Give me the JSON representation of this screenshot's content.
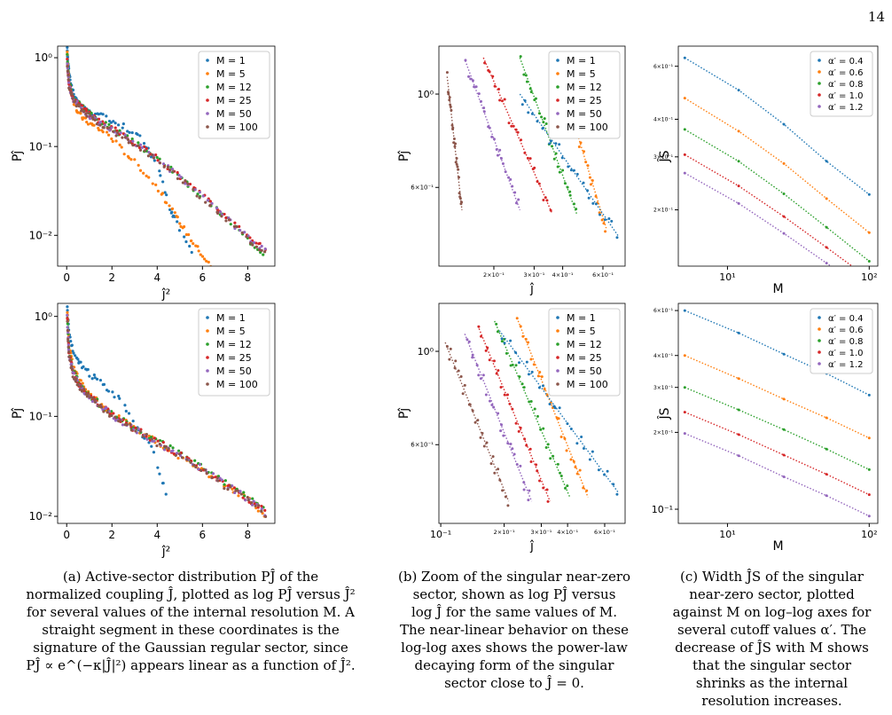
{
  "page_number": "14",
  "colors": {
    "M=1": "#1f77b4",
    "M=5": "#ff7f0e",
    "M=12": "#2ca02c",
    "M=25": "#d62728",
    "M=50": "#9467bd",
    "M=100": "#8c564b"
  },
  "captions": {
    "a": [
      "(a) Active-sector distribution PĴ of the",
      "normalized coupling Ĵ, plotted as log PĴ versus Ĵ²",
      "for several values of the internal resolution M. A",
      "straight segment in these coordinates is the",
      "signature of the Gaussian regular sector, since",
      "PĴ ∝ e^(−κ|Ĵ|²) appears linear as a function of Ĵ²."
    ],
    "b": [
      "(b) Zoom of the singular near-zero",
      "sector, shown as log PĴ versus",
      "log Ĵ for the same values of M.",
      "The near-linear behavior on these",
      "log-log axes shows the power-law",
      "decaying form of the singular",
      "sector close to Ĵ = 0."
    ],
    "c": [
      "(c) Width ĴS of the singular",
      "near-zero sector, plotted",
      "against M on log–log axes for",
      "several cutoff values α′. The",
      "decrease of ĴS with M shows",
      "that the singular sector",
      "shrinks as the internal",
      "resolution increases."
    ]
  },
  "chart_data": [
    {
      "id": "a-top",
      "type": "scatter",
      "xlabel": "ĵ²",
      "ylabel": "Pĵ",
      "xlim": [
        -0.4,
        9.2
      ],
      "ylim": [
        0.0045,
        1.35
      ],
      "yscale": "log",
      "xticks": [
        "0",
        "2",
        "4",
        "6",
        "8"
      ],
      "yticks": [
        "10⁰",
        "10⁻¹",
        "10⁻²"
      ],
      "legend": [
        "M = 1",
        "M = 5",
        "M = 12",
        "M = 25",
        "M = 50",
        "M = 100"
      ],
      "legend_position": "top-right",
      "series": [
        {
          "name": "M = 1",
          "kind": "regular",
          "x": [
            0.02,
            0.05,
            0.1,
            0.2,
            0.35,
            0.5,
            0.8,
            1.2,
            1.8,
            2.5,
            3.2,
            4.0,
            4.6,
            4.8,
            5.6
          ],
          "y": [
            1.3,
            0.9,
            0.7,
            0.5,
            0.36,
            0.3,
            0.26,
            0.23,
            0.21,
            0.17,
            0.13,
            0.065,
            0.018,
            0.015,
            0.006
          ]
        },
        {
          "name": "M = 5",
          "kind": "gauss",
          "x": [
            0.02,
            0.05,
            0.1,
            0.2,
            0.35,
            0.5,
            0.8,
            1.2,
            1.8,
            2.5,
            3.2,
            4.0,
            4.6,
            5.0,
            5.5,
            6.0,
            6.5
          ],
          "y": [
            1.2,
            0.8,
            0.55,
            0.4,
            0.3,
            0.24,
            0.2,
            0.17,
            0.14,
            0.09,
            0.06,
            0.035,
            0.02,
            0.014,
            0.009,
            0.006,
            0.004
          ]
        },
        {
          "name": "M = 12",
          "kind": "regular",
          "x": [
            0.02,
            0.1,
            0.3,
            0.6,
            1.0,
            1.5,
            2.2,
            3.0,
            4.0,
            5.0,
            6.0,
            7.0,
            8.0,
            8.8
          ],
          "y": [
            1.1,
            0.55,
            0.36,
            0.3,
            0.24,
            0.19,
            0.15,
            0.11,
            0.075,
            0.045,
            0.027,
            0.016,
            0.009,
            0.006
          ]
        },
        {
          "name": "M = 25",
          "kind": "regular",
          "x": [
            0.02,
            0.1,
            0.3,
            0.6,
            1.0,
            1.5,
            2.2,
            3.0,
            4.0,
            5.0,
            6.0,
            7.0,
            8.0,
            8.8
          ],
          "y": [
            1.0,
            0.5,
            0.34,
            0.29,
            0.23,
            0.19,
            0.15,
            0.11,
            0.075,
            0.046,
            0.028,
            0.017,
            0.01,
            0.007
          ]
        },
        {
          "name": "M = 50",
          "kind": "regular",
          "x": [
            0.02,
            0.1,
            0.3,
            0.6,
            1.0,
            1.5,
            2.2,
            3.0,
            4.0,
            5.0,
            6.0,
            7.0,
            8.0,
            8.8
          ],
          "y": [
            0.95,
            0.48,
            0.33,
            0.28,
            0.22,
            0.18,
            0.145,
            0.11,
            0.074,
            0.045,
            0.027,
            0.016,
            0.0095,
            0.0065
          ]
        },
        {
          "name": "M = 100",
          "kind": "regular",
          "x": [
            0.02,
            0.1,
            0.3,
            0.6,
            1.0,
            1.5,
            2.2,
            3.0,
            4.0,
            5.0,
            6.0,
            7.0,
            8.0,
            8.8
          ],
          "y": [
            0.9,
            0.46,
            0.32,
            0.27,
            0.22,
            0.18,
            0.14,
            0.105,
            0.072,
            0.044,
            0.026,
            0.016,
            0.009,
            0.0062
          ]
        }
      ]
    },
    {
      "id": "b-top",
      "type": "scatter",
      "xlabel": "ĵ",
      "ylabel": "Pĵ",
      "xlim": [
        0.115,
        0.75
      ],
      "ylim": [
        0.39,
        1.3
      ],
      "xscale": "log",
      "yscale": "log",
      "xticks": [
        "2×10⁻¹",
        "3×10⁻¹",
        "4×10⁻¹",
        "6×10⁻¹"
      ],
      "yticks": [
        "10⁰",
        "6×10⁻¹"
      ],
      "legend": [
        "M = 1",
        "M = 5",
        "M = 12",
        "M = 25",
        "M = 50",
        "M = 100"
      ],
      "legend_position": "top-right",
      "series": [
        {
          "name": "M = 100",
          "x": [
            0.125,
            0.145
          ],
          "y": [
            1.1,
            0.53
          ]
        },
        {
          "name": "M = 50",
          "x": [
            0.15,
            0.26
          ],
          "y": [
            1.2,
            0.53
          ]
        },
        {
          "name": "M = 25",
          "x": [
            0.18,
            0.36
          ],
          "y": [
            1.22,
            0.52
          ]
        },
        {
          "name": "M = 12",
          "x": [
            0.26,
            0.46
          ],
          "y": [
            1.22,
            0.52
          ]
        },
        {
          "name": "M = 5",
          "x": [
            0.37,
            0.62
          ],
          "y": [
            1.2,
            0.48
          ]
        },
        {
          "name": "M = 1",
          "x": [
            0.26,
            0.7
          ],
          "y": [
            1.0,
            0.46
          ]
        }
      ]
    },
    {
      "id": "c-top",
      "type": "line",
      "xlabel": "M",
      "ylabel": "ĴS",
      "xlim": [
        4.5,
        115
      ],
      "ylim": [
        0.13,
        0.7
      ],
      "xscale": "log",
      "yscale": "log",
      "xticks": [
        "10¹",
        "10²"
      ],
      "yticks": [
        "6×10⁻¹",
        "4×10⁻¹",
        "3×10⁻¹",
        "2×10⁻¹"
      ],
      "legend": [
        "α′ = 0.4",
        "α′ = 0.6",
        "α′ = 0.8",
        "α′ = 1.0",
        "α′ = 1.2"
      ],
      "legend_position": "top-right",
      "x": [
        5,
        12,
        25,
        50,
        100
      ],
      "series": [
        {
          "name": "α′ = 0.4",
          "values": [
            0.64,
            0.5,
            0.385,
            0.29,
            0.225
          ]
        },
        {
          "name": "α′ = 0.6",
          "values": [
            0.47,
            0.365,
            0.285,
            0.218,
            0.168
          ]
        },
        {
          "name": "α′ = 0.8",
          "values": [
            0.37,
            0.29,
            0.226,
            0.175,
            0.135
          ]
        },
        {
          "name": "α′ = 1.0",
          "values": [
            0.305,
            0.24,
            0.19,
            0.15,
            0.118
          ]
        },
        {
          "name": "α′ = 1.2",
          "values": [
            0.265,
            0.21,
            0.167,
            0.133,
            0.106
          ]
        }
      ]
    },
    {
      "id": "a-bottom",
      "type": "scatter",
      "xlabel": "ĵ²",
      "ylabel": "Pĵ",
      "xlim": [
        -0.4,
        9.2
      ],
      "ylim": [
        0.0085,
        1.35
      ],
      "yscale": "log",
      "xticks": [
        "0",
        "2",
        "4",
        "6",
        "8"
      ],
      "yticks": [
        "10⁰",
        "10⁻¹",
        "10⁻²"
      ],
      "legend": [
        "M = 1",
        "M = 5",
        "M = 12",
        "M = 25",
        "M = 50",
        "M = 100"
      ],
      "legend_position": "top-right",
      "series": [
        {
          "name": "M = 1",
          "x": [
            0.02,
            0.1,
            0.3,
            0.6,
            1.0,
            1.5,
            2.2,
            3.0,
            3.8,
            4.5
          ],
          "y": [
            1.3,
            0.7,
            0.42,
            0.33,
            0.27,
            0.22,
            0.16,
            0.09,
            0.045,
            0.015
          ]
        },
        {
          "name": "M = 5",
          "x": [
            0.02,
            0.1,
            0.3,
            0.6,
            1.0,
            1.5,
            2.2,
            3.0,
            4.0,
            5.0,
            6.0,
            7.0,
            8.0,
            8.8
          ],
          "y": [
            1.2,
            0.5,
            0.3,
            0.22,
            0.17,
            0.13,
            0.1,
            0.075,
            0.055,
            0.04,
            0.029,
            0.021,
            0.015,
            0.01
          ]
        },
        {
          "name": "M = 12",
          "x": [
            0.02,
            0.1,
            0.3,
            0.6,
            1.0,
            1.5,
            2.2,
            3.0,
            4.0,
            5.0,
            6.0,
            7.0,
            8.0,
            8.8
          ],
          "y": [
            1.1,
            0.46,
            0.28,
            0.21,
            0.165,
            0.13,
            0.1,
            0.077,
            0.057,
            0.042,
            0.031,
            0.022,
            0.016,
            0.011
          ]
        },
        {
          "name": "M = 25",
          "x": [
            0.02,
            0.1,
            0.3,
            0.6,
            1.0,
            1.5,
            2.2,
            3.0,
            4.0,
            5.0,
            6.0,
            7.0,
            8.0,
            8.8
          ],
          "y": [
            1.05,
            0.44,
            0.27,
            0.2,
            0.16,
            0.127,
            0.098,
            0.075,
            0.056,
            0.041,
            0.03,
            0.021,
            0.015,
            0.011
          ]
        },
        {
          "name": "M = 50",
          "x": [
            0.02,
            0.1,
            0.3,
            0.6,
            1.0,
            1.5,
            2.2,
            3.0,
            4.0,
            5.0,
            6.0,
            7.0,
            8.0,
            8.8
          ],
          "y": [
            1.0,
            0.42,
            0.26,
            0.2,
            0.157,
            0.125,
            0.096,
            0.074,
            0.055,
            0.04,
            0.03,
            0.021,
            0.015,
            0.0105
          ]
        },
        {
          "name": "M = 100",
          "x": [
            0.02,
            0.1,
            0.3,
            0.6,
            1.0,
            1.5,
            2.2,
            3.0,
            4.0,
            5.0,
            6.0,
            7.0,
            8.0,
            8.8
          ],
          "y": [
            0.95,
            0.4,
            0.25,
            0.195,
            0.155,
            0.123,
            0.095,
            0.073,
            0.054,
            0.04,
            0.029,
            0.02,
            0.015,
            0.0105
          ]
        }
      ]
    },
    {
      "id": "b-bottom",
      "type": "scatter",
      "xlabel": "ĵ",
      "ylabel": "Pĵ",
      "xlim": [
        0.098,
        0.75
      ],
      "ylim": [
        0.39,
        1.3
      ],
      "xscale": "log",
      "yscale": "log",
      "xticks": [
        "10⁻¹",
        "2×10⁻¹",
        "3×10⁻¹",
        "4×10⁻¹",
        "6×10⁻¹"
      ],
      "yticks": [
        "10⁰",
        "6×10⁻¹"
      ],
      "legend": [
        "M = 1",
        "M = 5",
        "M = 12",
        "M = 25",
        "M = 50",
        "M = 100"
      ],
      "legend_position": "top-right",
      "series": [
        {
          "name": "M = 100",
          "x": [
            0.105,
            0.21
          ],
          "y": [
            1.05,
            0.44
          ]
        },
        {
          "name": "M = 50",
          "x": [
            0.13,
            0.27
          ],
          "y": [
            1.1,
            0.44
          ]
        },
        {
          "name": "M = 25",
          "x": [
            0.15,
            0.33
          ],
          "y": [
            1.15,
            0.44
          ]
        },
        {
          "name": "M = 12",
          "x": [
            0.18,
            0.41
          ],
          "y": [
            1.18,
            0.45
          ]
        },
        {
          "name": "M = 5",
          "x": [
            0.23,
            0.5
          ],
          "y": [
            1.2,
            0.45
          ]
        },
        {
          "name": "M = 1",
          "x": [
            0.19,
            0.7
          ],
          "y": [
            1.12,
            0.46
          ]
        }
      ]
    },
    {
      "id": "c-bottom",
      "type": "line",
      "xlabel": "M",
      "ylabel": "ĴS",
      "xlim": [
        4.5,
        115
      ],
      "ylim": [
        0.088,
        0.64
      ],
      "xscale": "log",
      "yscale": "log",
      "xticks": [
        "10¹",
        "10²"
      ],
      "yticks": [
        "6×10⁻¹",
        "4×10⁻¹",
        "3×10⁻¹",
        "2×10⁻¹",
        "10⁻¹"
      ],
      "legend": [
        "α′ = 0.4",
        "α′ = 0.6",
        "α′ = 0.8",
        "α′ = 1.0",
        "α′ = 1.2"
      ],
      "legend_position": "top-right",
      "x": [
        5,
        12,
        25,
        50,
        100
      ],
      "series": [
        {
          "name": "α′ = 0.4",
          "values": [
            0.6,
            0.49,
            0.405,
            0.34,
            0.28
          ]
        },
        {
          "name": "α′ = 0.6",
          "values": [
            0.4,
            0.325,
            0.27,
            0.228,
            0.19
          ]
        },
        {
          "name": "α′ = 0.8",
          "values": [
            0.3,
            0.245,
            0.205,
            0.172,
            0.143
          ]
        },
        {
          "name": "α′ = 1.0",
          "values": [
            0.24,
            0.196,
            0.163,
            0.137,
            0.114
          ]
        },
        {
          "name": "α′ = 1.2",
          "values": [
            0.198,
            0.162,
            0.134,
            0.113,
            0.094
          ]
        }
      ]
    }
  ]
}
